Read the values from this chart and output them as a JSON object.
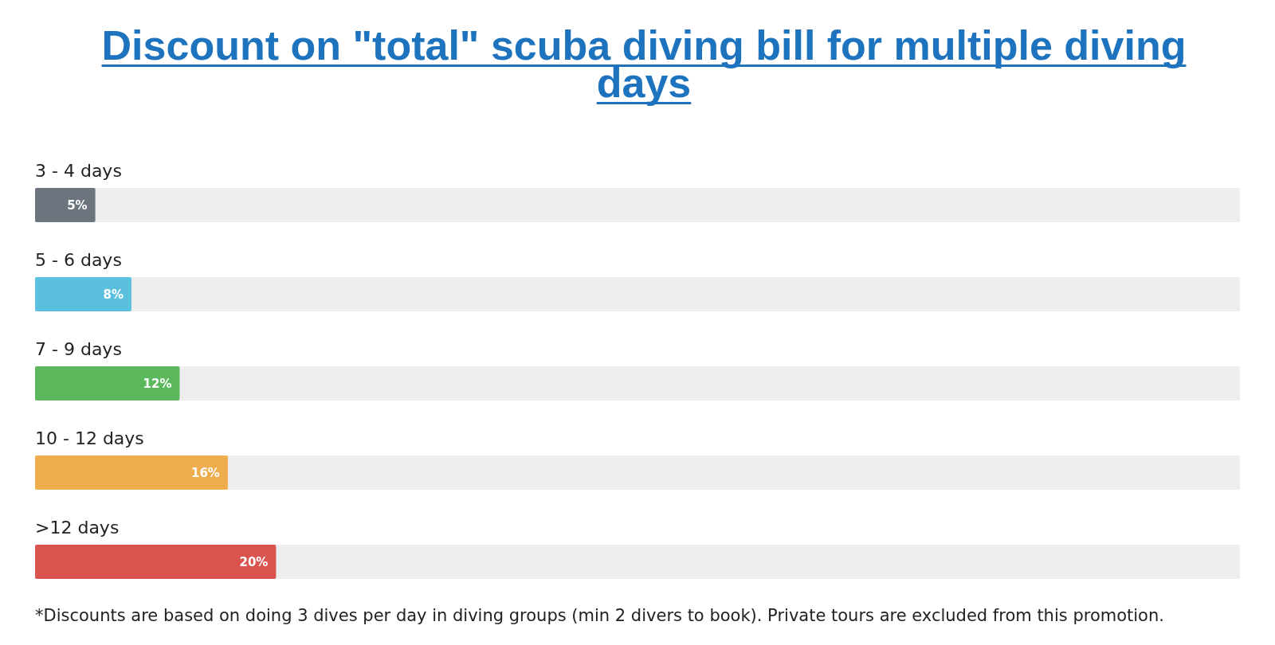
{
  "chart_data": {
    "type": "bar",
    "orientation": "horizontal",
    "title": "Discount on \"total\" scuba diving bill for multiple diving days",
    "categories": [
      "3 - 4 days",
      "5 - 6 days",
      "7 - 9 days",
      "10 - 12 days",
      ">12 days"
    ],
    "values": [
      5,
      8,
      12,
      16,
      20
    ],
    "colors": [
      "#6c757d",
      "#5bc0de",
      "#5cb85c",
      "#f0ad4e",
      "#d9534f"
    ],
    "value_labels": [
      "5%",
      "8%",
      "12%",
      "16%",
      "20%"
    ],
    "xlim": [
      0,
      100
    ],
    "annotations": [
      "*Discounts are based on doing 3 dives per day in diving groups (min 2 divers to book). Private tours are excluded from this promotion."
    ]
  }
}
